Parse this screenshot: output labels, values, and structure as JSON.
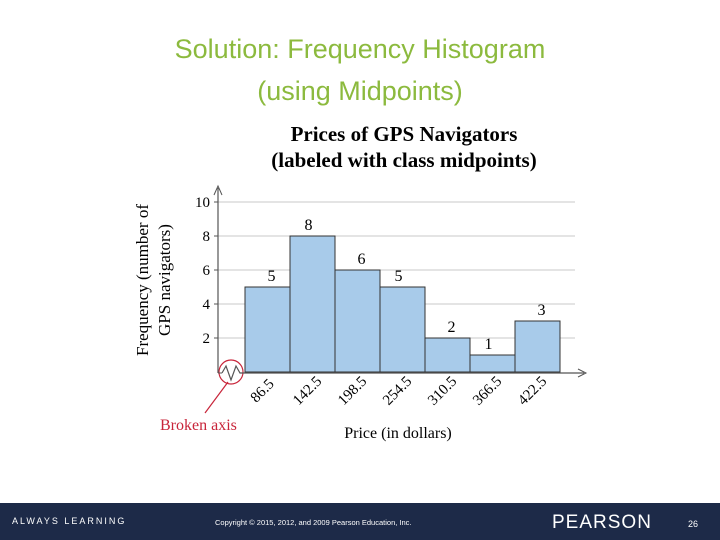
{
  "slide": {
    "title": [
      "Solution: Frequency Histogram",
      "(using Midpoints)"
    ],
    "footer": {
      "tagline": "ALWAYS LEARNING",
      "copyright": "Copyright © 2015, 2012, and 2009 Pearson Education, Inc.",
      "brand": "PEARSON",
      "page": 26
    }
  },
  "chart_data": {
    "type": "bar",
    "title": "Prices of GPS Navigators",
    "subtitle": "(labeled with class midpoints)",
    "x_label": "Price (in dollars)",
    "y_label": [
      "Frequency (number of",
      "GPS navigators)"
    ],
    "annotation": "Broken axis",
    "categories": [
      "86.5",
      "142.5",
      "198.5",
      "254.5",
      "310.5",
      "366.5",
      "422.5"
    ],
    "values": [
      5,
      8,
      6,
      5,
      2,
      1,
      3
    ],
    "color": "#a8cbea",
    "ylim": [
      0,
      11
    ],
    "yticks": [
      2,
      4,
      6,
      8,
      10
    ],
    "grid": true
  }
}
